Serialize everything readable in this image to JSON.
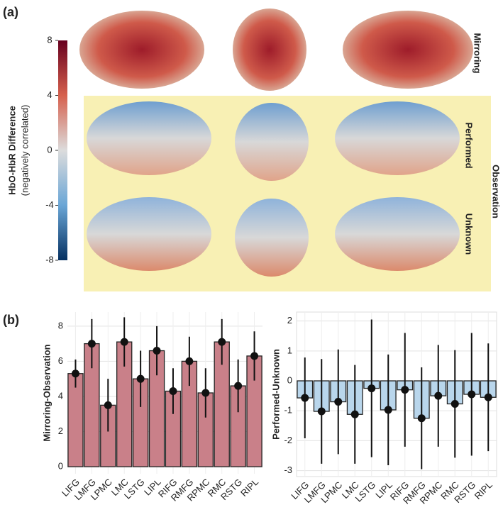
{
  "panel_a": {
    "label": "(a)",
    "colorbar": {
      "title": "HbO-HbR Difference",
      "subtitle": "(negatively correlated)",
      "lim": [
        -8,
        8
      ],
      "ticks": [
        8,
        4,
        0,
        -4,
        -8
      ]
    },
    "rows": [
      "Mirroring",
      "Performed",
      "Unknown"
    ],
    "group": "Observation"
  },
  "panel_b": {
    "label": "(b)"
  },
  "chart_data": [
    {
      "type": "bar",
      "ylabel": "Mirroring-Observation",
      "color": "#c98089",
      "categories": [
        "LIFG",
        "LMFG",
        "LPMC",
        "LMC",
        "LSTG",
        "LIPL",
        "RIFG",
        "RMFG",
        "RPMC",
        "RMC",
        "RSTG",
        "RIPL"
      ],
      "values": [
        5.3,
        7.0,
        3.5,
        7.1,
        5.0,
        6.6,
        4.3,
        6.0,
        4.2,
        7.1,
        4.6,
        6.3
      ],
      "errors": [
        0.8,
        1.4,
        1.5,
        1.4,
        1.6,
        1.4,
        1.3,
        1.4,
        1.4,
        1.3,
        1.5,
        1.4
      ],
      "ylim": [
        -0.4,
        8.8
      ],
      "yticks": [
        0,
        2,
        4,
        6,
        8
      ],
      "grid": true
    },
    {
      "type": "bar",
      "ylabel": "Performed-Unknown",
      "color": "#b9d6ec",
      "categories": [
        "LIFG",
        "LMFG",
        "LPMC",
        "LMC",
        "LSTG",
        "LIPL",
        "RIFG",
        "RMFG",
        "RPMC",
        "RMC",
        "RSTG",
        "RIPL"
      ],
      "values": [
        -0.57,
        -1.02,
        -0.7,
        -1.12,
        -0.25,
        -0.97,
        -0.3,
        -1.25,
        -0.5,
        -0.77,
        -0.45,
        -0.55
      ],
      "errors": [
        1.35,
        1.75,
        1.75,
        1.65,
        2.3,
        1.85,
        1.9,
        1.7,
        1.7,
        1.8,
        2.05,
        1.8
      ],
      "ylim": [
        -3.2,
        2.3
      ],
      "yticks": [
        -3,
        -2,
        -1,
        0,
        1,
        2
      ],
      "grid": true
    }
  ]
}
